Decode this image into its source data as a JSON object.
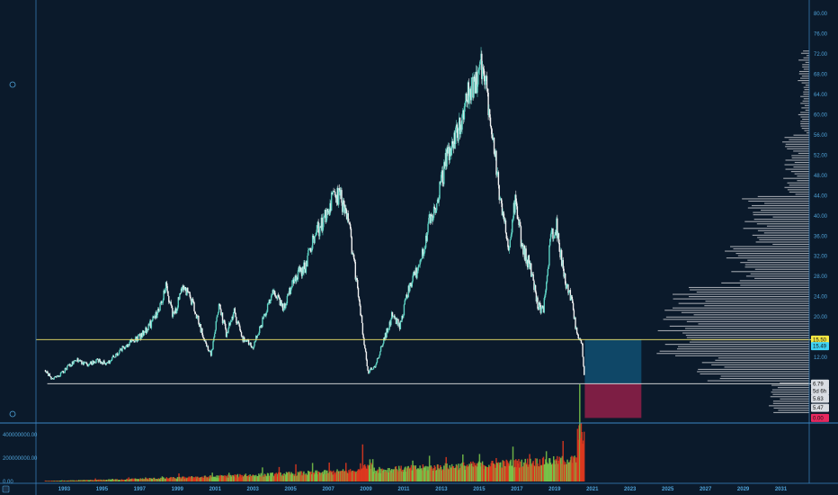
{
  "chart_data": [
    {
      "type": "candlestick",
      "title": "",
      "xlabel": "",
      "ylabel": "",
      "xlim": [
        1991.5,
        2032.5
      ],
      "ylim": [
        -1,
        82
      ],
      "x_ticks": [
        "1993",
        "1995",
        "1997",
        "1999",
        "2001",
        "2003",
        "2005",
        "2007",
        "2009",
        "2011",
        "2013",
        "2015",
        "2017",
        "2019",
        "2021",
        "2023",
        "2025",
        "2027",
        "2029",
        "2031"
      ],
      "y_ticks": [
        "80.00",
        "76.00",
        "72.00",
        "68.00",
        "64.00",
        "60.00",
        "56.00",
        "52.00",
        "48.00",
        "44.00",
        "40.00",
        "36.00",
        "32.00",
        "28.00",
        "24.00",
        "20.00",
        "12.00"
      ],
      "price_path": [
        [
          1992.0,
          9.5
        ],
        [
          1992.3,
          7.8
        ],
        [
          1992.8,
          8.6
        ],
        [
          1993.2,
          10.2
        ],
        [
          1993.7,
          11.5
        ],
        [
          1994.2,
          10.6
        ],
        [
          1994.8,
          11.4
        ],
        [
          1995.3,
          10.8
        ],
        [
          1995.8,
          12.6
        ],
        [
          1996.4,
          14.8
        ],
        [
          1996.9,
          15.8
        ],
        [
          1997.4,
          17.5
        ],
        [
          1997.9,
          20.5
        ],
        [
          1998.4,
          26.0
        ],
        [
          1998.8,
          20.0
        ],
        [
          1999.3,
          26.5
        ],
        [
          1999.9,
          22.0
        ],
        [
          2000.4,
          15.5
        ],
        [
          2000.8,
          12.5
        ],
        [
          2001.2,
          22.5
        ],
        [
          2001.6,
          16.5
        ],
        [
          2002.0,
          21.0
        ],
        [
          2002.5,
          15.5
        ],
        [
          2003.0,
          14.0
        ],
        [
          2003.6,
          20.0
        ],
        [
          2004.1,
          25.0
        ],
        [
          2004.6,
          21.5
        ],
        [
          2005.2,
          28.0
        ],
        [
          2005.8,
          30.0
        ],
        [
          2006.2,
          36.0
        ],
        [
          2006.7,
          38.5
        ],
        [
          2007.2,
          43.0
        ],
        [
          2007.6,
          44.5
        ],
        [
          2008.1,
          38.0
        ],
        [
          2008.6,
          24.0
        ],
        [
          2009.1,
          9.0
        ],
        [
          2009.5,
          10.5
        ],
        [
          2010.0,
          16.0
        ],
        [
          2010.4,
          20.5
        ],
        [
          2010.8,
          18.0
        ],
        [
          2011.3,
          26.5
        ],
        [
          2011.8,
          29.5
        ],
        [
          2012.3,
          38.0
        ],
        [
          2012.8,
          43.0
        ],
        [
          2013.3,
          52.0
        ],
        [
          2013.8,
          56.0
        ],
        [
          2014.3,
          63.0
        ],
        [
          2014.8,
          66.0
        ],
        [
          2015.1,
          70.0
        ],
        [
          2015.4,
          65.0
        ],
        [
          2015.8,
          54.0
        ],
        [
          2016.2,
          40.0
        ],
        [
          2016.6,
          34.0
        ],
        [
          2016.9,
          43.0
        ],
        [
          2017.3,
          33.5
        ],
        [
          2017.7,
          30.0
        ],
        [
          2018.1,
          22.5
        ],
        [
          2018.4,
          21.0
        ],
        [
          2018.8,
          36.0
        ],
        [
          2019.1,
          38.0
        ],
        [
          2019.5,
          28.0
        ],
        [
          2019.9,
          23.0
        ],
        [
          2020.2,
          16.0
        ],
        [
          2020.45,
          14.5
        ],
        [
          2020.6,
          6.8
        ]
      ],
      "volume_ylim": [
        0,
        470000000
      ],
      "volume_ticks": [
        "400000000.00",
        "200000000.00",
        "0.00"
      ],
      "horizontal_levels": [
        15.5,
        6.79
      ],
      "position": {
        "entry": 6.79,
        "target": 15.5,
        "stop": 0.0,
        "x_start": 2020.6,
        "x_end": 2023.6
      },
      "price_labels": [
        {
          "text": "15.50",
          "price": 15.5,
          "color": "#f5e642"
        },
        {
          "text": "15.49",
          "price": 14.2,
          "color": "#3fd3f5"
        },
        {
          "text": "6.79",
          "price": 6.79,
          "color": "#d9dde3"
        },
        {
          "text": "5d 6h",
          "price": 5.35,
          "color": "#d9dde3"
        },
        {
          "text": "5.63",
          "price": 3.8,
          "color": "#d9dde3"
        },
        {
          "text": "5.47",
          "price": 2.0,
          "color": "#d9dde3"
        },
        {
          "text": "0.00",
          "price": 0.0,
          "color": "#e8285f"
        }
      ]
    }
  ],
  "colors": {
    "background": "#0b1a2b",
    "accent": "#4fa3d9",
    "candle_up": "#5ed3c4",
    "candle_down": "#f2f2f2",
    "volume_up": "#7cc94a",
    "volume_down": "#e5391e",
    "level_line": "#f2e56b",
    "support_line": "#e6e6e6",
    "profit_zone": "#0f4c6e",
    "loss_zone": "#8a1f47",
    "volume_profile": "#b8bcc2"
  }
}
